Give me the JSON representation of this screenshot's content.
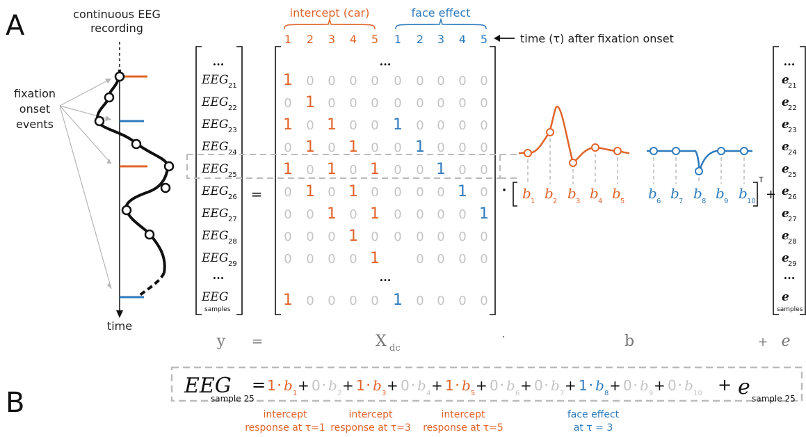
{
  "panel_labels": {
    "a": "A",
    "b": "B"
  },
  "left": {
    "title_line1": "continuous EEG",
    "title_line2": "recording",
    "events_line1": "fixation",
    "events_line2": "onset",
    "events_line3": "events",
    "time_label": "time"
  },
  "groups": {
    "intercept": "intercept (car)",
    "face": "face effect",
    "time_note": "time (τ) after fixation onset",
    "lag_numbers": [
      "1",
      "2",
      "3",
      "4",
      "5",
      "1",
      "2",
      "3",
      "4",
      "5"
    ]
  },
  "colors": {
    "orange": "#e0642a",
    "blue": "#2f7bbd",
    "gray": "#c4c4c4",
    "black": "#111111"
  },
  "y_vector": {
    "base": "EEG",
    "top_ellipsis": "...",
    "mid_ellipsis": "...",
    "subs": [
      "21",
      "22",
      "23",
      "24",
      "25",
      "26",
      "27",
      "28",
      "29"
    ],
    "last_sub": "samples"
  },
  "matrix": {
    "top_ellipsis": "...",
    "mid_ellipsis": "...",
    "rows": [
      [
        1,
        0,
        0,
        0,
        0,
        0,
        0,
        0,
        0,
        0
      ],
      [
        0,
        1,
        0,
        0,
        0,
        0,
        0,
        0,
        0,
        0
      ],
      [
        1,
        0,
        1,
        0,
        0,
        1,
        0,
        0,
        0,
        0
      ],
      [
        0,
        1,
        0,
        1,
        0,
        0,
        1,
        0,
        0,
        0
      ],
      [
        1,
        0,
        1,
        0,
        1,
        0,
        0,
        1,
        0,
        0
      ],
      [
        0,
        1,
        0,
        1,
        0,
        0,
        0,
        0,
        1,
        0
      ],
      [
        0,
        0,
        1,
        0,
        1,
        0,
        0,
        0,
        0,
        1
      ],
      [
        0,
        0,
        0,
        1,
        0,
        0,
        0,
        0,
        0,
        0
      ],
      [
        0,
        0,
        0,
        0,
        1,
        null,
        0,
        0,
        0,
        0
      ]
    ],
    "last_row": [
      1,
      0,
      0,
      0,
      0,
      1,
      0,
      0,
      0,
      0
    ]
  },
  "betas": {
    "symbol": "b",
    "subs": [
      "1",
      "2",
      "3",
      "4",
      "5",
      "6",
      "7",
      "8",
      "9",
      "10"
    ],
    "transpose": "T"
  },
  "e_vector": {
    "base": "e",
    "top_ellipsis": "...",
    "mid_ellipsis": "...",
    "subs": [
      "21",
      "22",
      "23",
      "24",
      "25",
      "26",
      "27",
      "28",
      "29"
    ],
    "last_sub": "samples"
  },
  "operators": {
    "equals": "=",
    "dot": "·",
    "plus": "+"
  },
  "formula_row": {
    "y": "y",
    "eq": "=",
    "x": "X",
    "x_sub": "dc",
    "dot": "·",
    "b": "b",
    "plus": "+",
    "e": "e"
  },
  "equation_b": {
    "lhs": "EEG",
    "lhs_sub": "sample 25",
    "eq": "=",
    "terms": [
      {
        "coef": "1",
        "sub": "1",
        "color": "orange"
      },
      {
        "coef": "0",
        "sub": "2",
        "color": "gray"
      },
      {
        "coef": "1",
        "sub": "3",
        "color": "orange"
      },
      {
        "coef": "0",
        "sub": "4",
        "color": "gray"
      },
      {
        "coef": "1",
        "sub": "5",
        "color": "orange"
      },
      {
        "coef": "0",
        "sub": "6",
        "color": "gray"
      },
      {
        "coef": "0",
        "sub": "7",
        "color": "gray"
      },
      {
        "coef": "1",
        "sub": "8",
        "color": "blue"
      },
      {
        "coef": "0",
        "sub": "9",
        "color": "gray"
      },
      {
        "coef": "0",
        "sub": "10",
        "color": "gray"
      }
    ],
    "plus": "+",
    "dot": "·",
    "b": "b",
    "tail_e": "e",
    "tail_sub": "sample 25",
    "annotations": [
      {
        "line1": "intercept",
        "line2": "response at τ=1",
        "color": "orange"
      },
      {
        "line1": "intercept",
        "line2": "response at τ=3",
        "color": "orange"
      },
      {
        "line1": "intercept",
        "line2": "response at τ=5",
        "color": "orange"
      },
      {
        "line1": "face effect",
        "line2": "at τ = 3",
        "color": "blue"
      }
    ]
  }
}
